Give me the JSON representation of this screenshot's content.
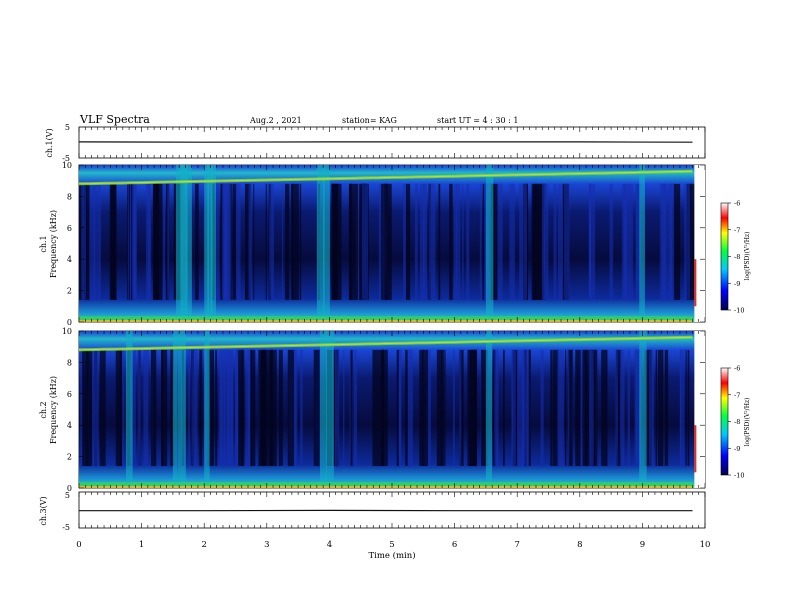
{
  "header": {
    "title": "VLF Spectra",
    "date": "Aug.2 , 2021",
    "station": "station= KAG",
    "start_ut": "start UT = 4 : 30 : 1"
  },
  "colors": {
    "spectrogram_bg": "#04052a",
    "noise_band": "#1a3fd6",
    "colorbar_stops": [
      "#000050",
      "#0000ff",
      "#00c8ff",
      "#00ff40",
      "#ffff00",
      "#ff0000",
      "#ffffff"
    ]
  },
  "chart_data": [
    {
      "type": "line",
      "panel": "ch1-voltage",
      "ylabel": "ch.1(V)",
      "ylim": [
        -5,
        5
      ],
      "yticks": [
        "5",
        "-5"
      ],
      "xlim": [
        0,
        10
      ],
      "series": [
        {
          "x": [
            0,
            2,
            4,
            6,
            8,
            9.8
          ],
          "values": [
            0.2,
            0.1,
            0.2,
            0.2,
            0.2,
            0.1
          ]
        }
      ]
    },
    {
      "type": "heatmap",
      "panel": "ch1-spectrogram",
      "ylabel_line1": "ch.1",
      "ylabel_line2": "Frequency (kHz)",
      "ylim": [
        0,
        10
      ],
      "yticks": [
        "0",
        "2",
        "4",
        "6",
        "8",
        "10"
      ],
      "xlim": [
        0,
        10
      ],
      "colorbar": {
        "label": "log(PSD)(V²/Hz)",
        "ticks": [
          "-6",
          "-7",
          "-8",
          "-9",
          "-10"
        ],
        "range": [
          -10,
          -6
        ]
      }
    },
    {
      "type": "heatmap",
      "panel": "ch2-spectrogram",
      "ylabel_line1": "ch.2",
      "ylabel_line2": "Frequency (kHz)",
      "ylim": [
        0,
        10
      ],
      "yticks": [
        "0",
        "2",
        "4",
        "6",
        "8",
        "10"
      ],
      "xlim": [
        0,
        10
      ],
      "colorbar": {
        "label": "log(PSD)(V²/Hz)",
        "ticks": [
          "-6",
          "-7",
          "-8",
          "-9",
          "-10"
        ],
        "range": [
          -10,
          -6
        ]
      }
    },
    {
      "type": "line",
      "panel": "ch3-voltage",
      "ylabel": "ch.3(V)",
      "ylim": [
        -5,
        5
      ],
      "yticks": [
        "5",
        "-5"
      ],
      "xlim": [
        0,
        10
      ],
      "xlabel": "Time (min)",
      "xticks": [
        "0",
        "1",
        "2",
        "3",
        "4",
        "5",
        "6",
        "7",
        "8",
        "9",
        "10"
      ],
      "series": [
        {
          "x": [
            0,
            2,
            4,
            6,
            8,
            9.8
          ],
          "values": [
            -0.2,
            -0.2,
            -0.1,
            -0.2,
            -0.2,
            -0.2
          ]
        }
      ]
    }
  ]
}
